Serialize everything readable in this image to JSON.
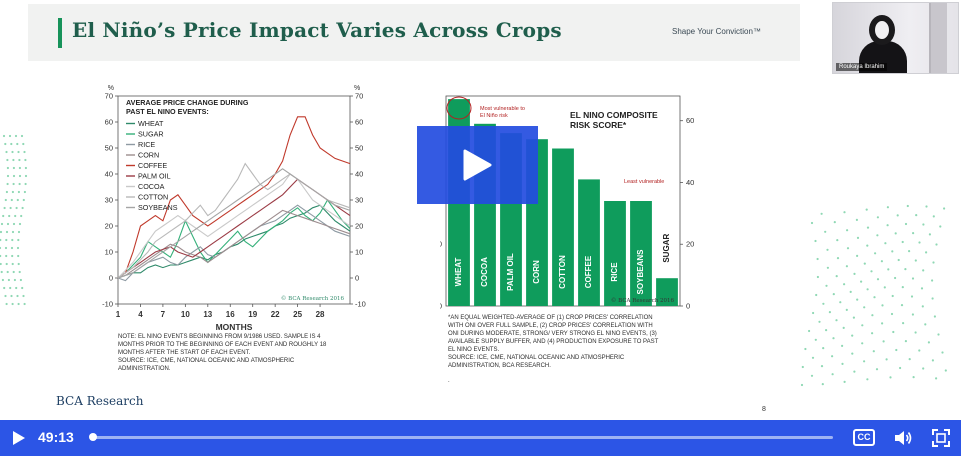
{
  "slide": {
    "title": "El Niño’s Price Impact Varies Across Crops",
    "tagline": "Shape Your Conviction™",
    "brand": "BCA Research",
    "page_number": "8"
  },
  "webcam": {
    "participant_name": "Roukaya Ibrahim"
  },
  "player": {
    "time": "49:13",
    "progress_fraction": 0.0,
    "cc_label": "CC"
  },
  "colors": {
    "brand_green": "#17935a",
    "title_green": "#1f5e4c",
    "player_blue": "#2c55e6",
    "play_overlay_blue": "#234cdf"
  },
  "left_chart": {
    "left_unit": "%",
    "right_unit": "%",
    "title_lines": [
      "AVERAGE PRICE CHANGE DURING",
      "PAST EL NINO EVENTS:"
    ],
    "watermark": "© BCA Research 2016",
    "note": "NOTE: EL NINO EVENTS BEGINNING FROM 9/1986 USED. SAMPLE IS 4\nMONTHS PRIOR TO THE BEGINNING OF EACH EVENT AND ROUGHLY 18\nMONTHS AFTER THE START OF EACH EVENT.\nSOURCE: ICE, CME, NATIONAL OCEANIC AND ATMOSPHERIC\nADMINISTRATION."
  },
  "right_chart": {
    "title_lines": [
      "EL NINO COMPOSITE",
      "RISK SCORE*"
    ],
    "most_vulnerable": "Most vulnerable to\nEl Niño risk",
    "least_vulnerable": "Least vulnerable",
    "watermark": "© BCA Research 2016",
    "note": "*AN EQUAL WEIGHTED-AVERAGE OF (1) CROP PRICES' CORRELATION\nWITH ONI OVER FULL SAMPLE, (2) CROP PRICES' CORRELATION WITH\nONI DURING MODERATE, STRONG/ VERY STRONG EL NINO EVENTS, (3)\nAVAILABLE SUPPLY BUFFER, AND (4) PRODUCTION EXPOSURE TO PAST\nEL NINO EVENTS.\nSOURCE: ICE, CME, NATIONAL OCEANIC AND ATMOSPHERIC\nADMINISTRATION, BCA RESEARCH.",
    "trailing_mark": "."
  },
  "chart_data": [
    {
      "type": "line",
      "title": "AVERAGE PRICE CHANGE DURING PAST EL NINO EVENTS:",
      "xlabel": "MONTHS",
      "ylabel": "%",
      "x": [
        1,
        2,
        3,
        4,
        5,
        6,
        7,
        8,
        9,
        10,
        11,
        12,
        13,
        14,
        15,
        16,
        17,
        18,
        19,
        20,
        21,
        22,
        23,
        24,
        25,
        26,
        27,
        28,
        29,
        30,
        31,
        32
      ],
      "x_ticks": [
        1,
        4,
        7,
        10,
        13,
        16,
        19,
        22,
        25,
        28
      ],
      "ylim": [
        -10,
        70
      ],
      "y_ticks": [
        -10,
        0,
        10,
        20,
        30,
        40,
        50,
        60,
        70
      ],
      "legend_placement": "top-left",
      "series": [
        {
          "name": "WHEAT",
          "color": "#2f8a6a",
          "values": [
            0,
            1,
            2,
            2,
            4,
            5,
            4,
            5,
            5,
            6,
            7,
            8,
            7,
            9,
            10,
            12,
            13,
            15,
            16,
            17,
            18,
            20,
            21,
            23,
            24,
            25,
            27,
            28,
            25,
            22,
            20,
            18
          ]
        },
        {
          "name": "SUGAR",
          "color": "#35b07a",
          "values": [
            0,
            2,
            5,
            8,
            14,
            12,
            10,
            8,
            14,
            22,
            16,
            10,
            6,
            9,
            12,
            15,
            18,
            14,
            12,
            15,
            18,
            20,
            22,
            25,
            27,
            24,
            22,
            25,
            30,
            26,
            22,
            19
          ]
        },
        {
          "name": "RICE",
          "color": "#8e9aa3",
          "values": [
            0,
            -1,
            2,
            4,
            6,
            7,
            8,
            6,
            5,
            8,
            10,
            12,
            9,
            8,
            10,
            12,
            14,
            16,
            18,
            20,
            21,
            22,
            24,
            26,
            28,
            26,
            24,
            22,
            20,
            18,
            17,
            16
          ]
        },
        {
          "name": "CORN",
          "color": "#9d8d8f",
          "values": [
            0,
            1,
            3,
            5,
            7,
            9,
            11,
            13,
            12,
            10,
            9,
            8,
            6,
            8,
            10,
            12,
            14,
            16,
            18,
            20,
            22,
            24,
            26,
            25,
            24,
            23,
            22,
            21,
            20,
            19,
            18,
            17
          ]
        },
        {
          "name": "COFFEE",
          "color": "#c0392b",
          "values": [
            0,
            2,
            10,
            20,
            22,
            24,
            22,
            30,
            32,
            28,
            24,
            22,
            20,
            22,
            24,
            26,
            28,
            30,
            32,
            34,
            36,
            40,
            45,
            55,
            62,
            62,
            55,
            50,
            48,
            46,
            45,
            44
          ]
        },
        {
          "name": "PALM OIL",
          "color": "#9b3b45",
          "values": [
            0,
            2,
            4,
            6,
            8,
            10,
            11,
            12,
            10,
            9,
            8,
            10,
            12,
            14,
            16,
            18,
            20,
            22,
            24,
            26,
            28,
            30,
            32,
            35,
            38,
            36,
            34,
            32,
            30,
            28,
            26,
            24
          ]
        },
        {
          "name": "COCOA",
          "color": "#c9c9c9",
          "values": [
            0,
            3,
            6,
            10,
            14,
            18,
            20,
            22,
            24,
            22,
            20,
            18,
            16,
            18,
            20,
            22,
            24,
            26,
            28,
            30,
            32,
            34,
            36,
            40,
            38,
            34,
            30,
            28,
            26,
            24,
            22,
            20
          ]
        },
        {
          "name": "COTTON",
          "color": "#b9b9b9",
          "values": [
            0,
            2,
            4,
            7,
            10,
            14,
            16,
            18,
            20,
            22,
            25,
            28,
            24,
            26,
            30,
            34,
            38,
            44,
            40,
            36,
            34,
            36,
            38,
            40,
            38,
            36,
            34,
            32,
            30,
            29,
            28,
            27
          ]
        },
        {
          "name": "SOYBEANS",
          "color": "#a5a5a5",
          "values": [
            0,
            1,
            2,
            4,
            6,
            8,
            10,
            12,
            14,
            16,
            18,
            20,
            22,
            24,
            26,
            28,
            30,
            32,
            34,
            36,
            38,
            40,
            42,
            40,
            38,
            36,
            34,
            32,
            30,
            28,
            27,
            26
          ]
        }
      ]
    },
    {
      "type": "bar",
      "title": "EL NINO COMPOSITE RISK SCORE*",
      "categories": [
        "WHEAT",
        "COCOA",
        "PALM OIL",
        "CORN",
        "COTTON",
        "COFFEE",
        "RICE",
        "SOYBEANS",
        "SUGAR"
      ],
      "values": [
        67,
        59,
        56,
        54,
        51,
        41,
        34,
        34,
        9
      ],
      "ylim": [
        0,
        68
      ],
      "y_ticks": [
        0,
        20,
        40,
        60
      ],
      "bar_color": "#0f9c5c",
      "label_color": "#ffffff",
      "highlight_color": "#b22222"
    }
  ]
}
